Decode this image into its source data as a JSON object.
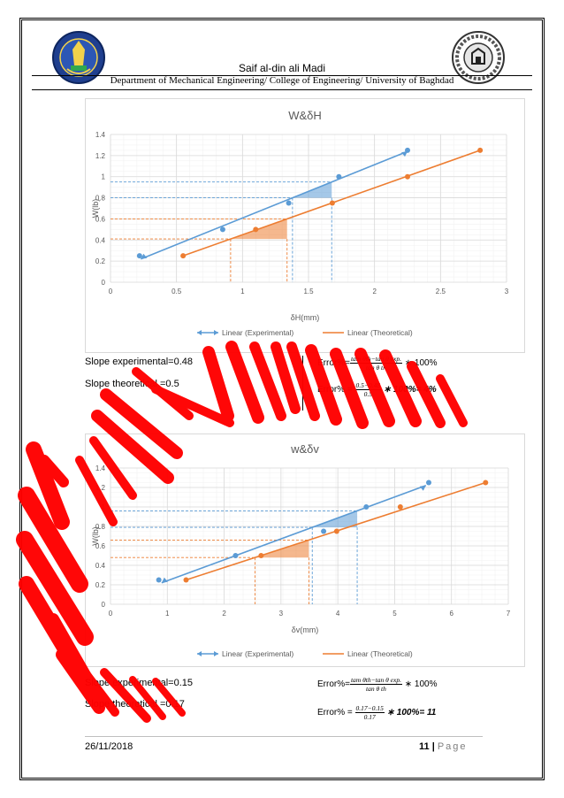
{
  "header": {
    "author": "Saif al-din ali Madi",
    "department": "Department of Mechanical Engineering/ College of Engineering/ University of Baghdad"
  },
  "section1": {
    "slope_experimental": "Slope experimental=0.48",
    "slope_theoretical": "Slope theoretical =0.5",
    "error_formula_prefix": "Error%=",
    "error_formula_num": "tam θth−tan θ exp.",
    "error_formula_den": "tan θ th",
    "error_formula_suffix": "∗ 100%",
    "error_value_prefix": "Error% =",
    "error_value_num": "0.5−0.48",
    "error_value_den": "0.5",
    "error_value_suffix": "∗ 100%= 4%"
  },
  "section2": {
    "slope_experimental": "Slope experimental=0.15",
    "slope_theoretical": "Slope theoretical =0.17",
    "error_formula_prefix": "Error%=",
    "error_formula_num": "tam θth−tan θ exp.",
    "error_formula_den": "tan θ th",
    "error_formula_suffix": "∗ 100%",
    "error_value_prefix": "Error% =",
    "error_value_num": "0.17−0.15",
    "error_value_den": "0.17",
    "error_value_suffix": "∗ 100%= 11"
  },
  "footer": {
    "date": "26/11/2018",
    "page_number": "11",
    "page_separator": "|",
    "page_label": "Page"
  },
  "colors": {
    "experimental": "#5b9bd5",
    "theoretical": "#ed7d31",
    "scribble": "#ff0000"
  },
  "chart_data": [
    {
      "type": "scatter",
      "title": "W&δH",
      "xlabel": "δH(mm)",
      "ylabel": "W(lb)",
      "xlim": [
        0,
        3
      ],
      "ylim": [
        0,
        1.4
      ],
      "xticks": [
        "0",
        "0.5",
        "1",
        "1.5",
        "2",
        "2.5",
        "3"
      ],
      "yticks": [
        "0",
        "0.2",
        "0.4",
        "0.6",
        "0.8",
        "1",
        "1.2",
        "1.4"
      ],
      "grid": true,
      "legend_position": "bottom",
      "series": [
        {
          "name": "Linear (Experimental)",
          "points": [
            [
              0.22,
              0.25
            ],
            [
              0.85,
              0.5
            ],
            [
              1.35,
              0.75
            ],
            [
              1.73,
              1.0
            ],
            [
              2.25,
              1.25
            ]
          ],
          "trend": [
            [
              0.23,
              0.22
            ],
            [
              2.25,
              1.24
            ]
          ]
        },
        {
          "name": "Linear (Theoretical)",
          "points": [
            [
              0.55,
              0.25
            ],
            [
              1.1,
              0.5
            ],
            [
              1.68,
              0.75
            ],
            [
              2.25,
              1.0
            ],
            [
              2.8,
              1.25
            ]
          ],
          "trend": [
            [
              0.55,
              0.25
            ],
            [
              2.8,
              1.25
            ]
          ]
        }
      ]
    },
    {
      "type": "scatter",
      "title": "w&δv",
      "xlabel": "δv(mm)",
      "ylabel": "W(lb)",
      "xlim": [
        0,
        7
      ],
      "ylim": [
        0,
        1.4
      ],
      "xticks": [
        "0",
        "1",
        "2",
        "3",
        "4",
        "5",
        "6",
        "7"
      ],
      "yticks": [
        "0",
        "0.2",
        "0.4",
        "0.6",
        "0.8",
        "1",
        "1.2",
        "1.4"
      ],
      "grid": true,
      "legend_position": "bottom",
      "series": [
        {
          "name": "Linear (Experimental)",
          "points": [
            [
              0.85,
              0.25
            ],
            [
              2.2,
              0.5
            ],
            [
              3.75,
              0.75
            ],
            [
              4.5,
              1.0
            ],
            [
              5.6,
              1.25
            ]
          ],
          "trend": [
            [
              0.9,
              0.22
            ],
            [
              5.55,
              1.22
            ]
          ]
        },
        {
          "name": "Linear (Theoretical)",
          "points": [
            [
              1.33,
              0.25
            ],
            [
              2.65,
              0.5
            ],
            [
              3.98,
              0.75
            ],
            [
              5.1,
              1.0
            ],
            [
              6.6,
              1.25
            ]
          ],
          "trend": [
            [
              1.33,
              0.25
            ],
            [
              6.6,
              1.25
            ]
          ]
        }
      ]
    }
  ]
}
